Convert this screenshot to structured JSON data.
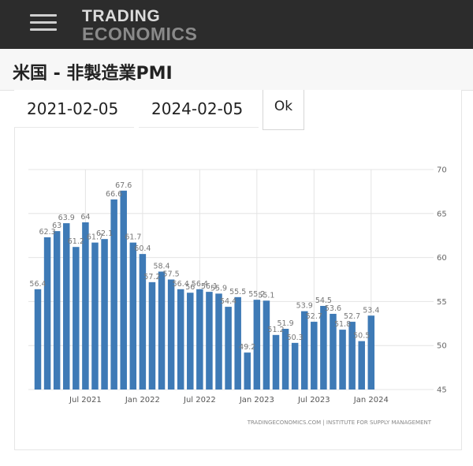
{
  "header": {
    "menu_icon": "hamburger-menu-icon",
    "logo_line1": "TRADING",
    "logo_line2": "ECONOMICS"
  },
  "page": {
    "title": "米国 - 非製造業PMI"
  },
  "date_range": {
    "start": "2021-02-05",
    "end": "2024-02-05",
    "ok_label": "Ok"
  },
  "chart_data": {
    "type": "bar",
    "bar_color": "#3e7ab6",
    "grid": true,
    "ylim": [
      45,
      70
    ],
    "y_ticks": [
      45,
      50,
      55,
      60,
      65,
      70
    ],
    "y_axis_side": "right",
    "x_tick_labels": [
      {
        "label": "Jul 2021",
        "index": 5
      },
      {
        "label": "Jan 2022",
        "index": 11
      },
      {
        "label": "Jul 2022",
        "index": 17
      },
      {
        "label": "Jan 2023",
        "index": 23
      },
      {
        "label": "Jul 2023",
        "index": 29
      },
      {
        "label": "Jan 2024",
        "index": 35
      }
    ],
    "values": [
      56.4,
      62.3,
      63.0,
      63.9,
      61.2,
      64.0,
      61.7,
      62.1,
      66.6,
      67.6,
      61.7,
      60.4,
      57.2,
      58.4,
      57.5,
      56.4,
      56.0,
      56.4,
      56.1,
      55.9,
      54.4,
      55.5,
      49.2,
      55.2,
      55.1,
      51.2,
      51.9,
      50.3,
      53.9,
      52.7,
      54.5,
      53.6,
      51.8,
      52.7,
      50.5,
      53.4
    ],
    "data_labels": [
      "56.4",
      "62.3",
      "63",
      "63.9",
      "61.2",
      "64",
      "61.7",
      "62.1",
      "66.6",
      "67.6",
      "61.7",
      "60.4",
      "57.2",
      "58.4",
      "57.5",
      "56.4",
      "56",
      "56.4",
      "56.1",
      "55.9",
      "54.4",
      "55.5",
      "49.2",
      "55.2",
      "55.1",
      "51.2",
      "51.9",
      "50.3",
      "53.9",
      "52.7",
      "54.5",
      "53.6",
      "51.8",
      "52.7",
      "50.5",
      "53.4"
    ],
    "source": "TRADINGECONOMICS.COM  |  INSTITUTE FOR SUPPLY MANAGEMENT"
  }
}
